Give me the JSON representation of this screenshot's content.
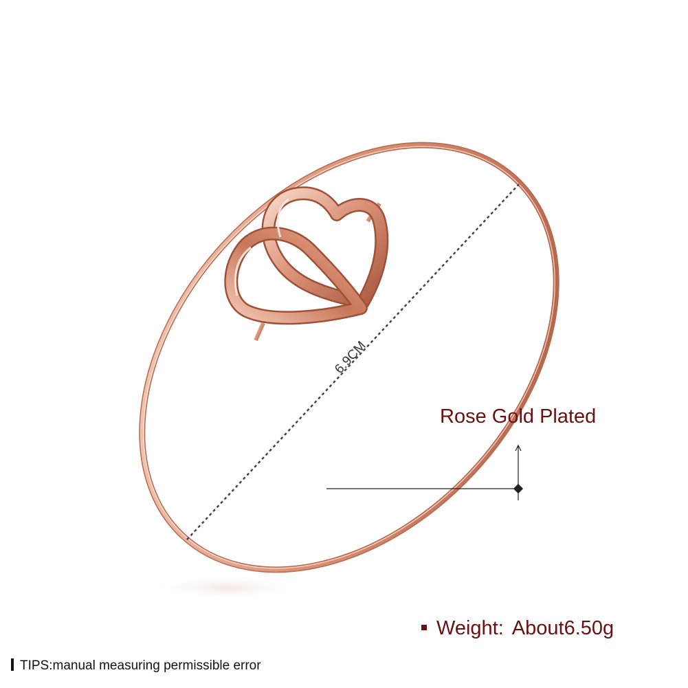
{
  "product": {
    "diameter_label": "6.9CM",
    "material_label": "Rose Gold Plated",
    "weight_label": "Weight:",
    "weight_value": "About6.50g",
    "tips": "TIPS:manual measuring permissible error"
  },
  "colors": {
    "rose_gold_light": "#f6d3c4",
    "rose_gold_mid": "#d98f74",
    "rose_gold_dark": "#a85a40",
    "label_text": "#6b1010",
    "background": "#ffffff"
  }
}
